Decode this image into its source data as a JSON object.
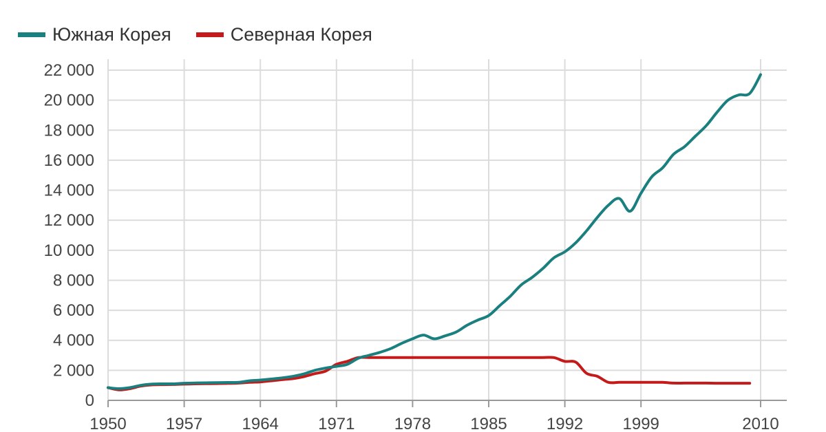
{
  "chart_data": {
    "type": "line",
    "xlabel": "",
    "ylabel": "",
    "xlim": [
      1950,
      2010
    ],
    "ylim": [
      0,
      22000
    ],
    "x_ticks": [
      "1950",
      "1957",
      "1964",
      "1971",
      "1978",
      "1985",
      "1992",
      "1999",
      "2010"
    ],
    "x_tick_values": [
      1950,
      1957,
      1964,
      1971,
      1978,
      1985,
      1992,
      1999,
      2010
    ],
    "y_ticks": [
      "0",
      "2 000",
      "4 000",
      "6 000",
      "8 000",
      "10 000",
      "12 000",
      "14 000",
      "16 000",
      "18 000",
      "20 000",
      "22 000"
    ],
    "y_tick_values": [
      0,
      2000,
      4000,
      6000,
      8000,
      10000,
      12000,
      14000,
      16000,
      18000,
      20000,
      22000
    ],
    "grid": true,
    "legend_position": "top-left",
    "series": [
      {
        "name": "Южная Корея",
        "color": "#1a7f7f",
        "points": [
          [
            1950,
            850
          ],
          [
            1951,
            780
          ],
          [
            1952,
            850
          ],
          [
            1953,
            1000
          ],
          [
            1954,
            1080
          ],
          [
            1955,
            1100
          ],
          [
            1956,
            1100
          ],
          [
            1957,
            1140
          ],
          [
            1958,
            1160
          ],
          [
            1959,
            1170
          ],
          [
            1960,
            1180
          ],
          [
            1961,
            1190
          ],
          [
            1962,
            1200
          ],
          [
            1963,
            1300
          ],
          [
            1964,
            1350
          ],
          [
            1965,
            1420
          ],
          [
            1966,
            1500
          ],
          [
            1967,
            1600
          ],
          [
            1968,
            1760
          ],
          [
            1969,
            2000
          ],
          [
            1970,
            2150
          ],
          [
            1971,
            2270
          ],
          [
            1972,
            2400
          ],
          [
            1973,
            2800
          ],
          [
            1974,
            3000
          ],
          [
            1975,
            3200
          ],
          [
            1976,
            3450
          ],
          [
            1977,
            3800
          ],
          [
            1978,
            4100
          ],
          [
            1979,
            4350
          ],
          [
            1980,
            4100
          ],
          [
            1981,
            4300
          ],
          [
            1982,
            4550
          ],
          [
            1983,
            5000
          ],
          [
            1984,
            5350
          ],
          [
            1985,
            5650
          ],
          [
            1986,
            6300
          ],
          [
            1987,
            6950
          ],
          [
            1988,
            7700
          ],
          [
            1989,
            8200
          ],
          [
            1990,
            8800
          ],
          [
            1991,
            9500
          ],
          [
            1992,
            9900
          ],
          [
            1993,
            10500
          ],
          [
            1994,
            11300
          ],
          [
            1995,
            12200
          ],
          [
            1996,
            13000
          ],
          [
            1997,
            13450
          ],
          [
            1998,
            12600
          ],
          [
            1999,
            13800
          ],
          [
            2000,
            14900
          ],
          [
            2001,
            15500
          ],
          [
            2002,
            16400
          ],
          [
            2003,
            16900
          ],
          [
            2004,
            17600
          ],
          [
            2005,
            18300
          ],
          [
            2006,
            19200
          ],
          [
            2007,
            20000
          ],
          [
            2008,
            20350
          ],
          [
            2009,
            20450
          ],
          [
            2010,
            21700
          ]
        ]
      },
      {
        "name": "Северная Корея",
        "color": "#c41a1a",
        "points": [
          [
            1950,
            850
          ],
          [
            1951,
            700
          ],
          [
            1952,
            780
          ],
          [
            1953,
            950
          ],
          [
            1954,
            1030
          ],
          [
            1955,
            1050
          ],
          [
            1956,
            1060
          ],
          [
            1957,
            1080
          ],
          [
            1958,
            1100
          ],
          [
            1959,
            1110
          ],
          [
            1960,
            1120
          ],
          [
            1961,
            1130
          ],
          [
            1962,
            1150
          ],
          [
            1963,
            1200
          ],
          [
            1964,
            1230
          ],
          [
            1965,
            1300
          ],
          [
            1966,
            1380
          ],
          [
            1967,
            1450
          ],
          [
            1968,
            1580
          ],
          [
            1969,
            1780
          ],
          [
            1970,
            1950
          ],
          [
            1971,
            2400
          ],
          [
            1972,
            2600
          ],
          [
            1973,
            2850
          ],
          [
            1974,
            2850
          ],
          [
            1976,
            2850
          ],
          [
            1978,
            2850
          ],
          [
            1980,
            2850
          ],
          [
            1982,
            2850
          ],
          [
            1984,
            2850
          ],
          [
            1986,
            2850
          ],
          [
            1988,
            2850
          ],
          [
            1990,
            2850
          ],
          [
            1991,
            2850
          ],
          [
            1992,
            2600
          ],
          [
            1993,
            2550
          ],
          [
            1994,
            1800
          ],
          [
            1995,
            1600
          ],
          [
            1996,
            1200
          ],
          [
            1997,
            1200
          ],
          [
            1998,
            1200
          ],
          [
            1999,
            1200
          ],
          [
            2000,
            1200
          ],
          [
            2001,
            1200
          ],
          [
            2002,
            1150
          ],
          [
            2003,
            1150
          ],
          [
            2004,
            1150
          ],
          [
            2005,
            1150
          ],
          [
            2006,
            1140
          ],
          [
            2007,
            1140
          ],
          [
            2008,
            1140
          ],
          [
            2009,
            1140
          ]
        ]
      }
    ]
  }
}
